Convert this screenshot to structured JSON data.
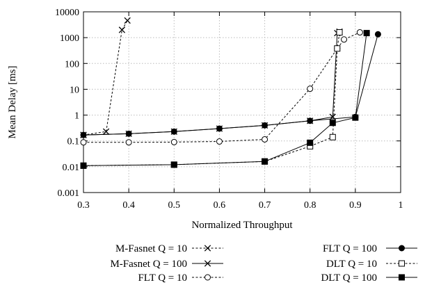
{
  "chart_data": {
    "type": "line",
    "xlabel": "Normalized Throughput",
    "ylabel": "Mean Delay [ms]",
    "xlim": [
      0.3,
      1.0
    ],
    "ylim": [
      0.001,
      10000
    ],
    "y_scale": "log",
    "x_ticks": [
      "0.3",
      "0.4",
      "0.5",
      "0.6",
      "0.7",
      "0.8",
      "0.9",
      "1"
    ],
    "y_ticks": [
      "0.001",
      "0.01",
      "0.1",
      "1",
      "10",
      "100",
      "1000",
      "10000"
    ],
    "grid": true,
    "legend_position": "below",
    "series": [
      {
        "name": "M-Fasnet Q = 10",
        "line": "dashed",
        "marker": "x",
        "points": [
          [
            0.3,
            0.17
          ],
          [
            0.35,
            0.23
          ],
          [
            0.385,
            2000
          ],
          [
            0.397,
            4600
          ]
        ]
      },
      {
        "name": "M-Fasnet Q = 100",
        "line": "solid",
        "marker": "x",
        "points": [
          [
            0.3,
            0.17
          ],
          [
            0.4,
            0.19
          ],
          [
            0.5,
            0.23
          ],
          [
            0.6,
            0.3
          ],
          [
            0.7,
            0.4
          ],
          [
            0.8,
            0.6
          ],
          [
            0.85,
            0.85
          ],
          [
            0.86,
            1500
          ],
          [
            0.865,
            1700
          ]
        ]
      },
      {
        "name": "FLT Q = 10",
        "line": "dashed",
        "marker": "open-circle",
        "points": [
          [
            0.3,
            0.088
          ],
          [
            0.4,
            0.088
          ],
          [
            0.5,
            0.09
          ],
          [
            0.6,
            0.095
          ],
          [
            0.7,
            0.115
          ],
          [
            0.8,
            10.5
          ],
          [
            0.86,
            380
          ],
          [
            0.875,
            850
          ],
          [
            0.91,
            1600
          ]
        ]
      },
      {
        "name": "FLT Q = 100",
        "line": "solid",
        "marker": "filled-circle",
        "points": [
          [
            0.3,
            0.17
          ],
          [
            0.4,
            0.19
          ],
          [
            0.5,
            0.23
          ],
          [
            0.6,
            0.3
          ],
          [
            0.7,
            0.4
          ],
          [
            0.8,
            0.6
          ],
          [
            0.9,
            0.85
          ],
          [
            0.95,
            1350
          ]
        ]
      },
      {
        "name": "DLT Q = 10",
        "line": "dashed",
        "marker": "open-square",
        "points": [
          [
            0.3,
            0.011
          ],
          [
            0.5,
            0.012
          ],
          [
            0.7,
            0.016
          ],
          [
            0.8,
            0.062
          ],
          [
            0.85,
            0.14
          ],
          [
            0.86,
            380
          ],
          [
            0.865,
            1600
          ]
        ]
      },
      {
        "name": "DLT Q = 100",
        "line": "solid",
        "marker": "filled-square",
        "points": [
          [
            0.3,
            0.011
          ],
          [
            0.5,
            0.012
          ],
          [
            0.7,
            0.016
          ],
          [
            0.8,
            0.085
          ],
          [
            0.85,
            0.5
          ],
          [
            0.9,
            0.8
          ],
          [
            0.925,
            1500
          ]
        ]
      }
    ]
  }
}
